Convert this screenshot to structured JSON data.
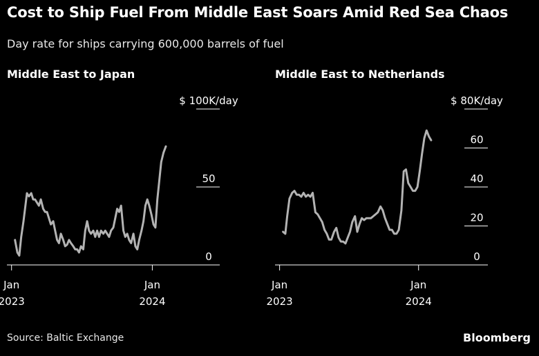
{
  "title": "Cost to Ship Fuel From Middle East Soars Amid Red Sea Chaos",
  "subtitle": "Day rate for ships carrying 600,000 barrels of fuel",
  "source": "Source: Baltic Exchange",
  "brand": "Bloomberg",
  "colors": {
    "background": "#000000",
    "line": "#b3b3b3",
    "text": "#ffffff",
    "axis": "#ffffff"
  },
  "chart_data": [
    {
      "type": "line",
      "title": "Middle East to Japan",
      "ylabel": "",
      "ylim": [
        0,
        100
      ],
      "yticks": [
        {
          "value": 100,
          "label": "$ 100K/day"
        },
        {
          "value": 50,
          "label": "50"
        },
        {
          "value": 0,
          "label": "0"
        }
      ],
      "xticks": [
        {
          "date": "2023-01-01",
          "label_line1": "Jan",
          "label_line2": "2023"
        },
        {
          "date": "2024-01-01",
          "label_line1": "Jan",
          "label_line2": "2024"
        }
      ],
      "xlim": [
        "2022-12-20",
        "2024-07-01"
      ],
      "grid": false,
      "series": [
        {
          "x": [
            "2023-01-10",
            "2023-01-16",
            "2023-01-21",
            "2023-01-26",
            "2023-02-01",
            "2023-02-06",
            "2023-02-10",
            "2023-02-15",
            "2023-02-21",
            "2023-02-26",
            "2023-03-03",
            "2023-03-08",
            "2023-03-13",
            "2023-03-18",
            "2023-03-24",
            "2023-03-29",
            "2023-04-03",
            "2023-04-08",
            "2023-04-13",
            "2023-04-19",
            "2023-04-24",
            "2023-04-29",
            "2023-05-04",
            "2023-05-09",
            "2023-05-15",
            "2023-05-20",
            "2023-05-25",
            "2023-05-30",
            "2023-06-04",
            "2023-06-10",
            "2023-06-15",
            "2023-06-20",
            "2023-06-25",
            "2023-06-30",
            "2023-07-06",
            "2023-07-11",
            "2023-07-16",
            "2023-07-21",
            "2023-07-26",
            "2023-08-01",
            "2023-08-06",
            "2023-08-11",
            "2023-08-16",
            "2023-08-21",
            "2023-08-27",
            "2023-09-01",
            "2023-09-06",
            "2023-09-11",
            "2023-09-16",
            "2023-09-22",
            "2023-09-27",
            "2023-10-02",
            "2023-10-07",
            "2023-10-12",
            "2023-10-18",
            "2023-10-23",
            "2023-10-28",
            "2023-11-02",
            "2023-11-07",
            "2023-11-13",
            "2023-11-18",
            "2023-11-23",
            "2023-11-28",
            "2023-12-04",
            "2023-12-09",
            "2023-12-14",
            "2023-12-19",
            "2023-12-24",
            "2023-12-30",
            "2024-01-04",
            "2024-01-09",
            "2024-01-14",
            "2024-01-19",
            "2024-01-24",
            "2024-01-30",
            "2024-02-05"
          ],
          "values": [
            16,
            8,
            6,
            18,
            28,
            38,
            46,
            44,
            46,
            42,
            42,
            40,
            38,
            42,
            36,
            34,
            34,
            30,
            26,
            28,
            22,
            16,
            14,
            20,
            16,
            12,
            13,
            16,
            14,
            12,
            10,
            10,
            8,
            12,
            10,
            22,
            28,
            22,
            20,
            22,
            18,
            22,
            18,
            22,
            20,
            22,
            20,
            18,
            22,
            24,
            30,
            36,
            34,
            38,
            22,
            18,
            20,
            16,
            14,
            20,
            12,
            10,
            16,
            22,
            28,
            38,
            42,
            38,
            32,
            26,
            24,
            42,
            54,
            66,
            72,
            76
          ]
        }
      ]
    },
    {
      "type": "line",
      "title": "Middle East to Netherlands",
      "ylabel": "",
      "ylim": [
        0,
        80
      ],
      "yticks": [
        {
          "value": 80,
          "label": "$ 80K/day"
        },
        {
          "value": 60,
          "label": "60"
        },
        {
          "value": 40,
          "label": "40"
        },
        {
          "value": 20,
          "label": "20"
        },
        {
          "value": 0,
          "label": "0"
        }
      ],
      "xticks": [
        {
          "date": "2023-01-01",
          "label_line1": "Jan",
          "label_line2": "2023"
        },
        {
          "date": "2024-01-01",
          "label_line1": "Jan",
          "label_line2": "2024"
        }
      ],
      "xlim": [
        "2022-12-20",
        "2024-07-01"
      ],
      "grid": false,
      "series": [
        {
          "x": [
            "2023-01-10",
            "2023-01-16",
            "2023-01-21",
            "2023-01-27",
            "2023-02-03",
            "2023-02-09",
            "2023-02-15",
            "2023-02-21",
            "2023-02-27",
            "2023-03-05",
            "2023-03-11",
            "2023-03-17",
            "2023-03-23",
            "2023-03-29",
            "2023-04-05",
            "2023-04-11",
            "2023-04-17",
            "2023-04-23",
            "2023-04-29",
            "2023-05-05",
            "2023-05-11",
            "2023-05-17",
            "2023-05-24",
            "2023-05-30",
            "2023-06-05",
            "2023-06-11",
            "2023-06-17",
            "2023-06-23",
            "2023-06-29",
            "2023-07-05",
            "2023-07-11",
            "2023-07-18",
            "2023-07-24",
            "2023-07-30",
            "2023-08-05",
            "2023-08-11",
            "2023-08-17",
            "2023-08-23",
            "2023-08-29",
            "2023-09-04",
            "2023-09-10",
            "2023-09-16",
            "2023-09-23",
            "2023-09-29",
            "2023-10-05",
            "2023-10-11",
            "2023-10-17",
            "2023-10-23",
            "2023-10-29",
            "2023-11-04",
            "2023-11-10",
            "2023-11-17",
            "2023-11-23",
            "2023-11-29",
            "2023-12-05",
            "2023-12-11",
            "2023-12-17",
            "2023-12-23",
            "2023-12-29",
            "2024-01-04",
            "2024-01-10",
            "2024-01-16",
            "2024-01-22",
            "2024-01-28",
            "2024-02-03"
          ],
          "values": [
            17,
            16,
            25,
            34,
            37,
            38,
            36,
            36,
            35,
            37,
            35,
            36,
            35,
            37,
            27,
            26,
            24,
            22,
            18,
            16,
            13,
            13,
            17,
            19,
            14,
            12,
            12,
            11,
            14,
            17,
            22,
            25,
            17,
            21,
            24,
            23,
            24,
            24,
            24,
            25,
            26,
            27,
            30,
            28,
            24,
            21,
            18,
            18,
            16,
            16,
            18,
            28,
            48,
            49,
            42,
            40,
            38,
            38,
            40,
            48,
            57,
            65,
            69,
            66,
            64
          ]
        }
      ]
    }
  ]
}
